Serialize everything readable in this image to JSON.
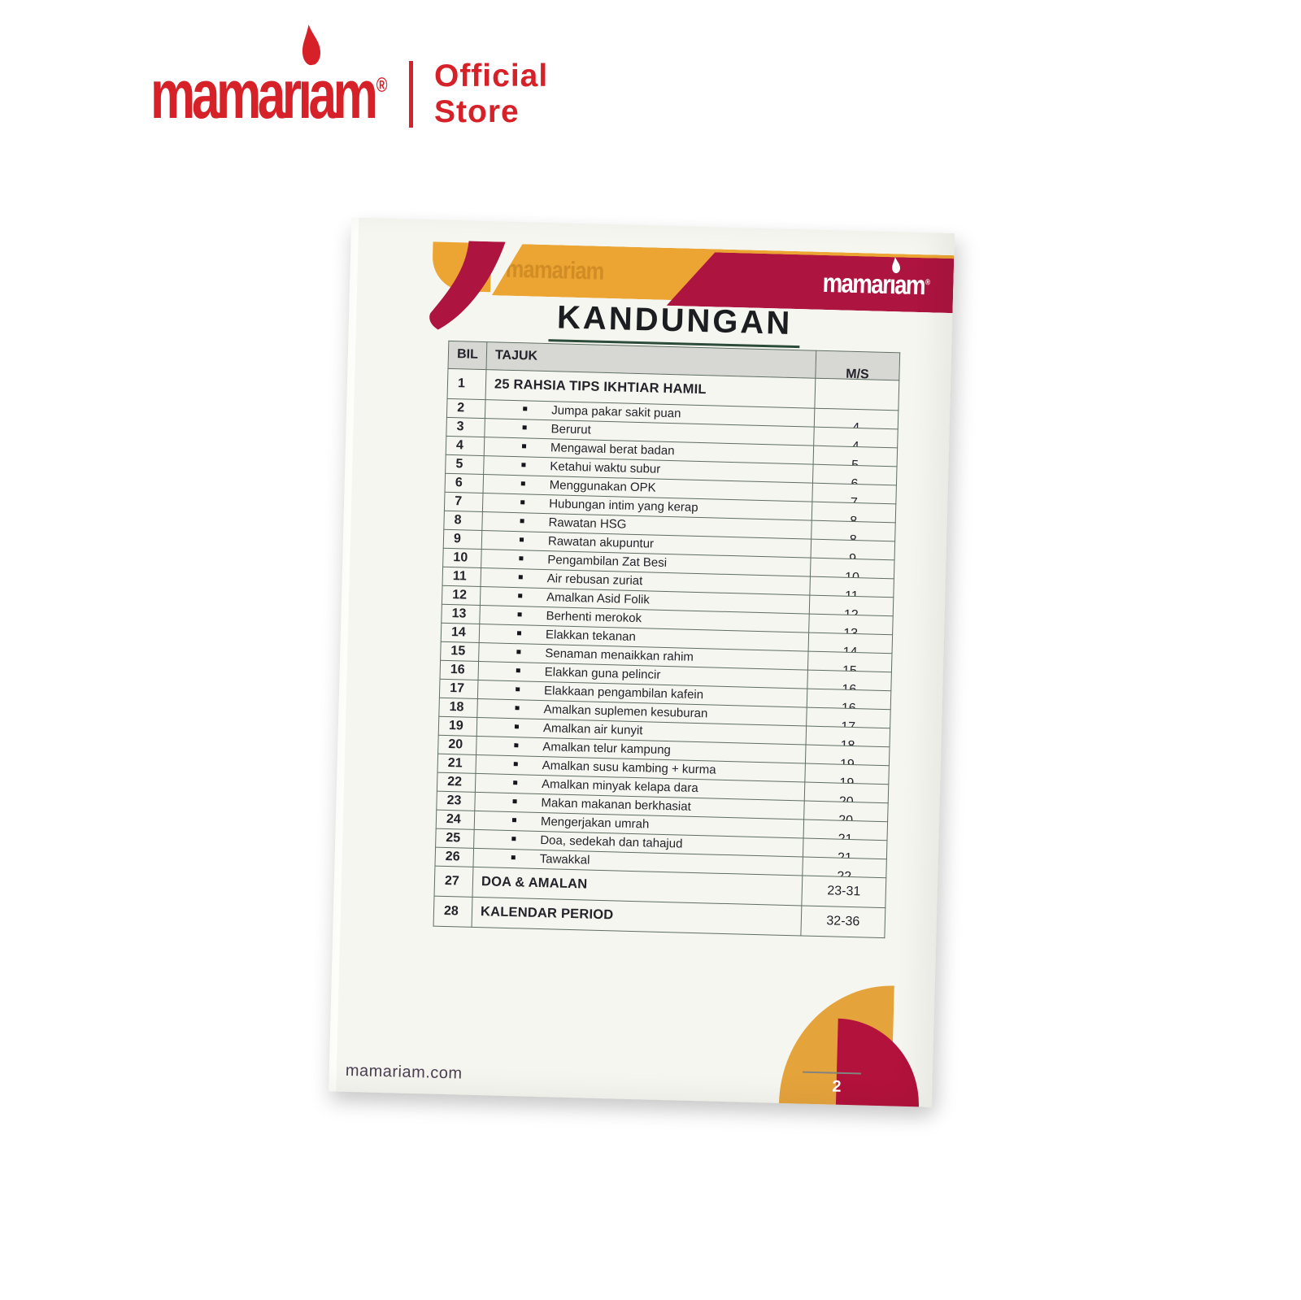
{
  "logo": {
    "pre": "mamar",
    "dotless_i": "ı",
    "post": "am",
    "reg": "®",
    "full": "mamariam"
  },
  "store": {
    "line1": "Official",
    "line2": "Store"
  },
  "page": {
    "band_watermark": "mamariam",
    "title": "KANDUNGAN",
    "table": {
      "headers": {
        "bil": "BIL",
        "tajuk": "TAJUK",
        "ms": "M/S"
      },
      "rows": [
        {
          "bil": "1",
          "tajuk": "25 RAHSIA TIPS IKHTIAR HAMIL",
          "ms": "",
          "style": "section"
        },
        {
          "bil": "2",
          "tajuk": "Jumpa pakar sakit puan",
          "ms": "4",
          "style": "bullet"
        },
        {
          "bil": "3",
          "tajuk": "Berurut",
          "ms": "4",
          "style": "bullet"
        },
        {
          "bil": "4",
          "tajuk": "Mengawal berat badan",
          "ms": "5",
          "style": "bullet"
        },
        {
          "bil": "5",
          "tajuk": "Ketahui waktu subur",
          "ms": "6",
          "style": "bullet"
        },
        {
          "bil": "6",
          "tajuk": "Menggunakan OPK",
          "ms": "7",
          "style": "bullet"
        },
        {
          "bil": "7",
          "tajuk": "Hubungan intim yang kerap",
          "ms": "8",
          "style": "bullet"
        },
        {
          "bil": "8",
          "tajuk": "Rawatan HSG",
          "ms": "8",
          "style": "bullet"
        },
        {
          "bil": "9",
          "tajuk": "Rawatan akupuntur",
          "ms": "9",
          "style": "bullet"
        },
        {
          "bil": "10",
          "tajuk": "Pengambilan Zat Besi",
          "ms": "10",
          "style": "bullet"
        },
        {
          "bil": "11",
          "tajuk": "Air rebusan zuriat",
          "ms": "11",
          "style": "bullet"
        },
        {
          "bil": "12",
          "tajuk": "Amalkan Asid Folik",
          "ms": "12",
          "style": "bullet"
        },
        {
          "bil": "13",
          "tajuk": "Berhenti merokok",
          "ms": "13",
          "style": "bullet"
        },
        {
          "bil": "14",
          "tajuk": "Elakkan tekanan",
          "ms": "14",
          "style": "bullet"
        },
        {
          "bil": "15",
          "tajuk": "Senaman menaikkan rahim",
          "ms": "15",
          "style": "bullet"
        },
        {
          "bil": "16",
          "tajuk": "Elakkan guna pelincir",
          "ms": "16",
          "style": "bullet"
        },
        {
          "bil": "17",
          "tajuk": "Elakkaan pengambilan kafein",
          "ms": "16",
          "style": "bullet"
        },
        {
          "bil": "18",
          "tajuk": "Amalkan suplemen kesuburan",
          "ms": "17",
          "style": "bullet"
        },
        {
          "bil": "19",
          "tajuk": "Amalkan air kunyit",
          "ms": "18",
          "style": "bullet"
        },
        {
          "bil": "20",
          "tajuk": "Amalkan telur kampung",
          "ms": "19",
          "style": "bullet"
        },
        {
          "bil": "21",
          "tajuk": "Amalkan susu kambing + kurma",
          "ms": "19",
          "style": "bullet"
        },
        {
          "bil": "22",
          "tajuk": "Amalkan minyak kelapa dara",
          "ms": "20",
          "style": "bullet"
        },
        {
          "bil": "23",
          "tajuk": "Makan makanan berkhasiat",
          "ms": "20",
          "style": "bullet"
        },
        {
          "bil": "24",
          "tajuk": "Mengerjakan umrah",
          "ms": "21",
          "style": "bullet"
        },
        {
          "bil": "25",
          "tajuk": "Doa, sedekah dan tahajud",
          "ms": "21",
          "style": "bullet"
        },
        {
          "bil": "26",
          "tajuk": "Tawakkal",
          "ms": "22",
          "style": "bullet"
        },
        {
          "bil": "27",
          "tajuk": "DOA & AMALAN",
          "ms": "23-31",
          "style": "section"
        },
        {
          "bil": "28",
          "tajuk": "KALENDAR PERIOD",
          "ms": "32-36",
          "style": "section"
        }
      ]
    },
    "footer": {
      "website": "mamariam.com",
      "page_number": "2"
    }
  },
  "colors": {
    "brand_red": "#d62129",
    "band_red": "#ad1440",
    "band_yellow": "#eca433",
    "footer_yellow": "#e5a33c",
    "footer_red": "#b2123c",
    "page_bg": "#f6f6f0",
    "table_border": "#5e6e61",
    "header_cell_bg": "#d7d7d4",
    "text": "#24222a",
    "footer_text": "#4b3e52"
  }
}
